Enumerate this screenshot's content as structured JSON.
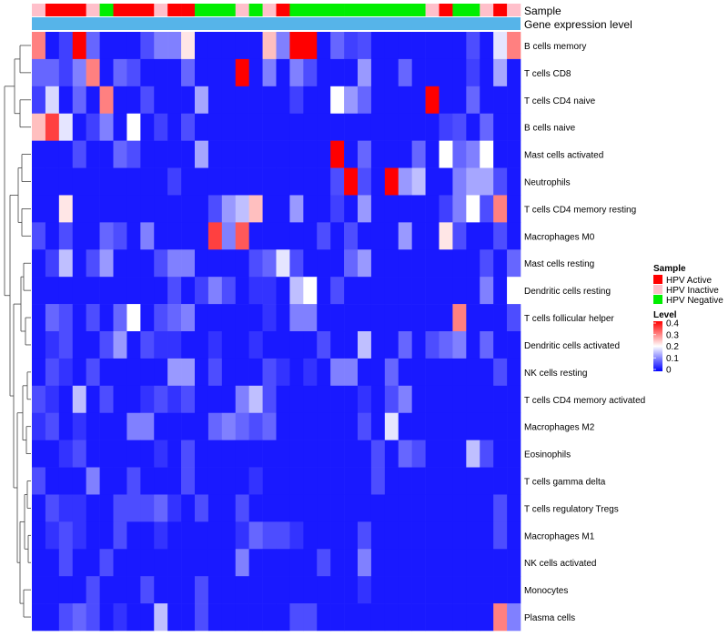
{
  "chart_data": {
    "type": "heatmap",
    "annotation_rows": [
      "Sample",
      "Gene expression level"
    ],
    "sample_groups": [
      "HPV Inactive",
      "HPV Active",
      "HPV Active",
      "HPV Active",
      "HPV Inactive",
      "HPV Negative",
      "HPV Active",
      "HPV Active",
      "HPV Active",
      "HPV Inactive",
      "HPV Active",
      "HPV Active",
      "HPV Negative",
      "HPV Negative",
      "HPV Negative",
      "HPV Inactive",
      "HPV Negative",
      "HPV Inactive",
      "HPV Active",
      "HPV Negative",
      "HPV Negative",
      "HPV Negative",
      "HPV Negative",
      "HPV Negative",
      "HPV Negative",
      "HPV Negative",
      "HPV Negative",
      "HPV Negative",
      "HPV Negative",
      "HPV Inactive",
      "HPV Active",
      "HPV Negative",
      "HPV Negative",
      "HPV Inactive",
      "HPV Active",
      "HPV Inactive"
    ],
    "group_colors": {
      "HPV Active": "#ff0000",
      "HPV Inactive": "#ffc0cb",
      "HPV Negative": "#00ee00"
    },
    "expression_bar_color": "#56b4e9",
    "rows": [
      "B cells memory",
      "T cells CD8",
      "T cells CD4 naive",
      "B cells naive",
      "Mast cells activated",
      "Neutrophils",
      "T cells CD4 memory resting",
      "Macrophages M0",
      "Mast cells resting",
      "Dendritic cells resting",
      "T cells follicular helper",
      "Dendritic cells activated",
      "NK cells resting",
      "T cells CD4 memory activated",
      "Macrophages M2",
      "Eosinophils",
      "T cells gamma delta",
      "T cells regulatory  Tregs",
      "Macrophages M1",
      "NK cells activated",
      "Monocytes",
      "Plasma cells"
    ],
    "values": [
      [
        0.3,
        0.02,
        0.05,
        0.4,
        0.08,
        0.02,
        0.02,
        0.02,
        0.06,
        0.1,
        0.1,
        0.22,
        0.02,
        0.02,
        0.02,
        0.02,
        0.02,
        0.25,
        0.1,
        0.4,
        0.4,
        0.02,
        0.08,
        0.05,
        0.06,
        0.02,
        0.02,
        0.02,
        0.02,
        0.02,
        0.02,
        0.02,
        0.06,
        0.02,
        0.18,
        0.3
      ],
      [
        0.08,
        0.08,
        0.05,
        0.1,
        0.3,
        0.02,
        0.08,
        0.06,
        0.02,
        0.02,
        0.02,
        0.08,
        0.02,
        0.02,
        0.02,
        0.4,
        0.02,
        0.1,
        0.02,
        0.1,
        0.06,
        0.02,
        0.02,
        0.02,
        0.12,
        0.02,
        0.02,
        0.08,
        0.02,
        0.02,
        0.02,
        0.02,
        0.05,
        0.02,
        0.13,
        0.02
      ],
      [
        0.05,
        0.17,
        0.02,
        0.08,
        0.02,
        0.3,
        0.02,
        0.02,
        0.06,
        0.02,
        0.02,
        0.02,
        0.13,
        0.02,
        0.02,
        0.02,
        0.02,
        0.02,
        0.02,
        0.05,
        0.02,
        0.02,
        0.2,
        0.12,
        0.08,
        0.02,
        0.02,
        0.02,
        0.02,
        0.4,
        0.02,
        0.02,
        0.08,
        0.02,
        0.02,
        0.02
      ],
      [
        0.25,
        0.35,
        0.18,
        0.02,
        0.05,
        0.1,
        0.02,
        0.2,
        0.02,
        0.05,
        0.02,
        0.06,
        0.02,
        0.02,
        0.02,
        0.02,
        0.02,
        0.02,
        0.02,
        0.02,
        0.02,
        0.02,
        0.02,
        0.02,
        0.02,
        0.02,
        0.02,
        0.02,
        0.02,
        0.02,
        0.05,
        0.06,
        0.02,
        0.08,
        0.02,
        0.02
      ],
      [
        0.02,
        0.02,
        0.02,
        0.06,
        0.02,
        0.02,
        0.08,
        0.06,
        0.02,
        0.02,
        0.02,
        0.02,
        0.13,
        0.02,
        0.02,
        0.02,
        0.02,
        0.02,
        0.02,
        0.02,
        0.02,
        0.02,
        0.4,
        0.02,
        0.08,
        0.02,
        0.02,
        0.02,
        0.08,
        0.02,
        0.2,
        0.08,
        0.1,
        0.2,
        0.02,
        0.02
      ],
      [
        0.02,
        0.02,
        0.02,
        0.02,
        0.02,
        0.02,
        0.02,
        0.02,
        0.02,
        0.02,
        0.05,
        0.02,
        0.02,
        0.02,
        0.02,
        0.02,
        0.02,
        0.02,
        0.02,
        0.02,
        0.02,
        0.02,
        0.06,
        0.4,
        0.06,
        0.02,
        0.4,
        0.12,
        0.15,
        0.02,
        0.02,
        0.1,
        0.13,
        0.13,
        0.06,
        0.02
      ],
      [
        0.02,
        0.02,
        0.22,
        0.02,
        0.02,
        0.02,
        0.02,
        0.02,
        0.02,
        0.02,
        0.02,
        0.02,
        0.02,
        0.06,
        0.12,
        0.15,
        0.25,
        0.02,
        0.02,
        0.12,
        0.02,
        0.02,
        0.05,
        0.02,
        0.12,
        0.02,
        0.02,
        0.02,
        0.02,
        0.02,
        0.05,
        0.1,
        0.2,
        0.06,
        0.3,
        0.02
      ],
      [
        0.06,
        0.02,
        0.06,
        0.02,
        0.02,
        0.08,
        0.06,
        0.02,
        0.1,
        0.02,
        0.02,
        0.02,
        0.02,
        0.35,
        0.1,
        0.33,
        0.02,
        0.02,
        0.02,
        0.02,
        0.02,
        0.06,
        0.02,
        0.06,
        0.02,
        0.02,
        0.02,
        0.12,
        0.02,
        0.02,
        0.22,
        0.06,
        0.02,
        0.02,
        0.06,
        0.02
      ],
      [
        0.02,
        0.05,
        0.15,
        0.02,
        0.06,
        0.12,
        0.02,
        0.02,
        0.02,
        0.06,
        0.1,
        0.1,
        0.02,
        0.02,
        0.02,
        0.02,
        0.06,
        0.08,
        0.18,
        0.06,
        0.02,
        0.02,
        0.02,
        0.08,
        0.12,
        0.02,
        0.02,
        0.02,
        0.02,
        0.02,
        0.02,
        0.02,
        0.02,
        0.06,
        0.02,
        0.08
      ],
      [
        0.02,
        0.02,
        0.02,
        0.02,
        0.02,
        0.02,
        0.02,
        0.02,
        0.02,
        0.02,
        0.06,
        0.02,
        0.05,
        0.1,
        0.06,
        0.02,
        0.04,
        0.04,
        0.02,
        0.15,
        0.2,
        0.02,
        0.06,
        0.02,
        0.02,
        0.02,
        0.02,
        0.02,
        0.02,
        0.02,
        0.02,
        0.02,
        0.02,
        0.1,
        0.02,
        0.2
      ],
      [
        0.02,
        0.08,
        0.06,
        0.02,
        0.06,
        0.02,
        0.08,
        0.2,
        0.02,
        0.06,
        0.08,
        0.1,
        0.02,
        0.02,
        0.02,
        0.02,
        0.02,
        0.04,
        0.02,
        0.1,
        0.1,
        0.02,
        0.02,
        0.02,
        0.02,
        0.02,
        0.02,
        0.02,
        0.02,
        0.02,
        0.02,
        0.3,
        0.02,
        0.02,
        0.02,
        0.06
      ],
      [
        0.02,
        0.04,
        0.06,
        0.02,
        0.02,
        0.06,
        0.12,
        0.02,
        0.06,
        0.04,
        0.04,
        0.02,
        0.02,
        0.04,
        0.02,
        0.02,
        0.04,
        0.02,
        0.02,
        0.02,
        0.02,
        0.06,
        0.02,
        0.02,
        0.15,
        0.02,
        0.02,
        0.08,
        0.02,
        0.06,
        0.08,
        0.1,
        0.02,
        0.08,
        0.02,
        0.02
      ],
      [
        0.02,
        0.06,
        0.04,
        0.02,
        0.06,
        0.02,
        0.02,
        0.02,
        0.02,
        0.02,
        0.12,
        0.12,
        0.02,
        0.06,
        0.02,
        0.02,
        0.02,
        0.06,
        0.04,
        0.02,
        0.04,
        0.02,
        0.1,
        0.1,
        0.02,
        0.02,
        0.08,
        0.02,
        0.02,
        0.02,
        0.02,
        0.02,
        0.02,
        0.02,
        0.06,
        0.02
      ],
      [
        0.06,
        0.04,
        0.02,
        0.15,
        0.02,
        0.06,
        0.02,
        0.02,
        0.04,
        0.06,
        0.04,
        0.06,
        0.02,
        0.02,
        0.02,
        0.1,
        0.15,
        0.06,
        0.02,
        0.02,
        0.02,
        0.02,
        0.02,
        0.02,
        0.04,
        0.02,
        0.06,
        0.1,
        0.02,
        0.02,
        0.02,
        0.02,
        0.02,
        0.02,
        0.02,
        0.02
      ],
      [
        0.04,
        0.06,
        0.02,
        0.04,
        0.02,
        0.02,
        0.02,
        0.1,
        0.1,
        0.02,
        0.02,
        0.02,
        0.02,
        0.08,
        0.1,
        0.08,
        0.06,
        0.08,
        0.02,
        0.02,
        0.02,
        0.02,
        0.02,
        0.02,
        0.06,
        0.02,
        0.18,
        0.02,
        0.02,
        0.02,
        0.02,
        0.02,
        0.02,
        0.02,
        0.02,
        0.02
      ],
      [
        0.02,
        0.02,
        0.04,
        0.06,
        0.02,
        0.02,
        0.02,
        0.02,
        0.02,
        0.04,
        0.02,
        0.06,
        0.02,
        0.02,
        0.02,
        0.02,
        0.02,
        0.02,
        0.02,
        0.02,
        0.02,
        0.02,
        0.02,
        0.02,
        0.02,
        0.06,
        0.02,
        0.08,
        0.06,
        0.02,
        0.02,
        0.02,
        0.15,
        0.06,
        0.02,
        0.02
      ],
      [
        0.06,
        0.02,
        0.02,
        0.02,
        0.1,
        0.02,
        0.02,
        0.06,
        0.02,
        0.02,
        0.02,
        0.06,
        0.02,
        0.02,
        0.02,
        0.02,
        0.04,
        0.02,
        0.02,
        0.02,
        0.02,
        0.02,
        0.02,
        0.02,
        0.02,
        0.06,
        0.02,
        0.02,
        0.02,
        0.02,
        0.02,
        0.02,
        0.02,
        0.02,
        0.02,
        0.02
      ],
      [
        0.02,
        0.06,
        0.04,
        0.04,
        0.02,
        0.02,
        0.06,
        0.06,
        0.06,
        0.08,
        0.04,
        0.02,
        0.06,
        0.02,
        0.02,
        0.06,
        0.02,
        0.02,
        0.02,
        0.02,
        0.02,
        0.02,
        0.02,
        0.02,
        0.02,
        0.02,
        0.02,
        0.02,
        0.02,
        0.02,
        0.02,
        0.02,
        0.02,
        0.02,
        0.06,
        0.02
      ],
      [
        0.02,
        0.04,
        0.06,
        0.04,
        0.02,
        0.02,
        0.06,
        0.02,
        0.02,
        0.04,
        0.02,
        0.02,
        0.02,
        0.02,
        0.02,
        0.04,
        0.08,
        0.06,
        0.06,
        0.04,
        0.02,
        0.02,
        0.02,
        0.02,
        0.06,
        0.02,
        0.02,
        0.02,
        0.02,
        0.02,
        0.02,
        0.02,
        0.02,
        0.02,
        0.06,
        0.02
      ],
      [
        0.02,
        0.02,
        0.06,
        0.02,
        0.02,
        0.06,
        0.02,
        0.02,
        0.02,
        0.02,
        0.02,
        0.02,
        0.02,
        0.02,
        0.02,
        0.1,
        0.02,
        0.02,
        0.02,
        0.02,
        0.02,
        0.06,
        0.02,
        0.02,
        0.1,
        0.02,
        0.02,
        0.02,
        0.02,
        0.02,
        0.02,
        0.02,
        0.02,
        0.02,
        0.02,
        0.02
      ],
      [
        0.02,
        0.02,
        0.02,
        0.02,
        0.06,
        0.02,
        0.02,
        0.02,
        0.06,
        0.02,
        0.02,
        0.02,
        0.06,
        0.02,
        0.02,
        0.02,
        0.02,
        0.02,
        0.02,
        0.02,
        0.02,
        0.02,
        0.02,
        0.02,
        0.04,
        0.02,
        0.02,
        0.02,
        0.02,
        0.02,
        0.02,
        0.02,
        0.02,
        0.02,
        0.02,
        0.02
      ],
      [
        0.02,
        0.02,
        0.06,
        0.08,
        0.06,
        0.02,
        0.04,
        0.02,
        0.02,
        0.15,
        0.02,
        0.02,
        0.06,
        0.02,
        0.02,
        0.02,
        0.02,
        0.02,
        0.02,
        0.06,
        0.06,
        0.02,
        0.02,
        0.02,
        0.02,
        0.02,
        0.02,
        0.02,
        0.02,
        0.02,
        0.02,
        0.02,
        0.02,
        0.02,
        0.3,
        0.1
      ]
    ],
    "color_scale": {
      "low": "#0000ff",
      "mid": "#ffffff",
      "high": "#ff0000",
      "min": 0,
      "mid_value": 0.2,
      "max": 0.4
    },
    "legend": {
      "sample_title": "Sample",
      "groups": [
        "HPV Active",
        "HPV Inactive",
        "HPV Negative"
      ],
      "level_title": "Level",
      "level_ticks": [
        "0.4",
        "0.3",
        "0.2",
        "0.1",
        "0"
      ]
    },
    "dendrogram": "row clustering tree drawn on the left side"
  }
}
